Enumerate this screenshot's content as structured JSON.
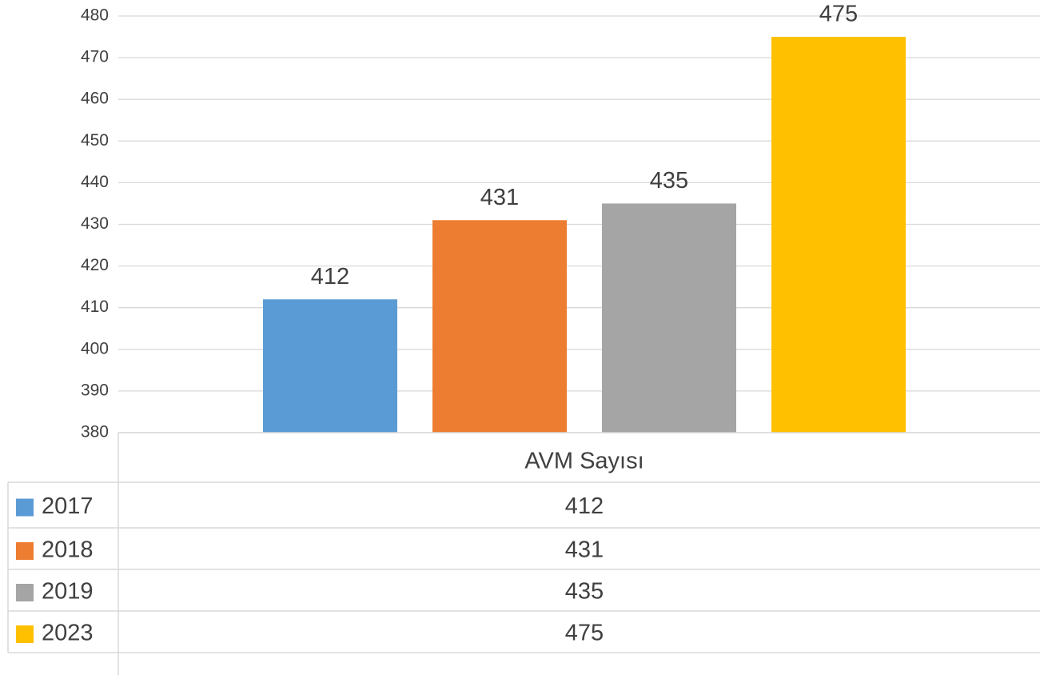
{
  "chart_data": {
    "type": "bar",
    "categories": [
      "AVM Sayısı"
    ],
    "series": [
      {
        "name": "2017",
        "color": "#5b9bd5",
        "values": [
          412
        ]
      },
      {
        "name": "2018",
        "color": "#ed7d31",
        "values": [
          431
        ]
      },
      {
        "name": "2019",
        "color": "#a5a5a5",
        "values": [
          435
        ]
      },
      {
        "name": "2023",
        "color": "#ffc000",
        "values": [
          475
        ]
      }
    ],
    "ylim": [
      380,
      480
    ],
    "yticks": [
      380,
      390,
      400,
      410,
      420,
      430,
      440,
      450,
      460,
      470,
      480
    ],
    "grid": true,
    "data_labels": true,
    "data_table": true
  }
}
